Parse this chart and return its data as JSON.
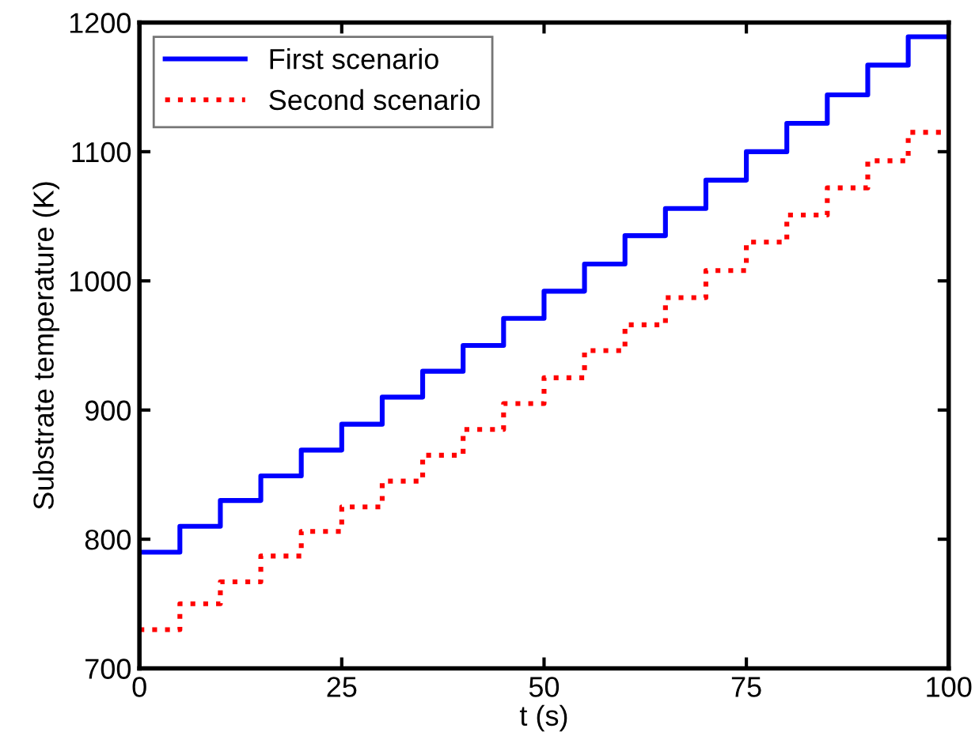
{
  "chart_data": {
    "type": "step",
    "xlabel": "t (s)",
    "ylabel": "Substrate temperature (K)",
    "x": [
      0,
      5,
      10,
      15,
      20,
      25,
      30,
      35,
      40,
      45,
      50,
      55,
      60,
      65,
      70,
      75,
      80,
      85,
      90,
      95,
      100
    ],
    "series": [
      {
        "name": "First scenario",
        "color": "#0000ff",
        "line_style": "solid",
        "values": [
          790,
          810,
          830,
          849,
          869,
          889,
          910,
          930,
          950,
          971,
          992,
          1013,
          1035,
          1056,
          1078,
          1100,
          1122,
          1144,
          1167,
          1189,
          1189
        ]
      },
      {
        "name": "Second scenario",
        "color": "#ff0000",
        "line_style": "dotted",
        "values": [
          730,
          750,
          767,
          787,
          806,
          825,
          845,
          865,
          885,
          905,
          925,
          946,
          966,
          987,
          1008,
          1030,
          1051,
          1072,
          1093,
          1115,
          1115
        ]
      }
    ],
    "xlim": [
      0,
      100
    ],
    "xticks": [
      0,
      25,
      50,
      75,
      100
    ],
    "ylim": [
      700,
      1200
    ],
    "yticks": [
      700,
      800,
      900,
      1000,
      1100,
      1200
    ],
    "grid": false,
    "legend": "top left"
  }
}
